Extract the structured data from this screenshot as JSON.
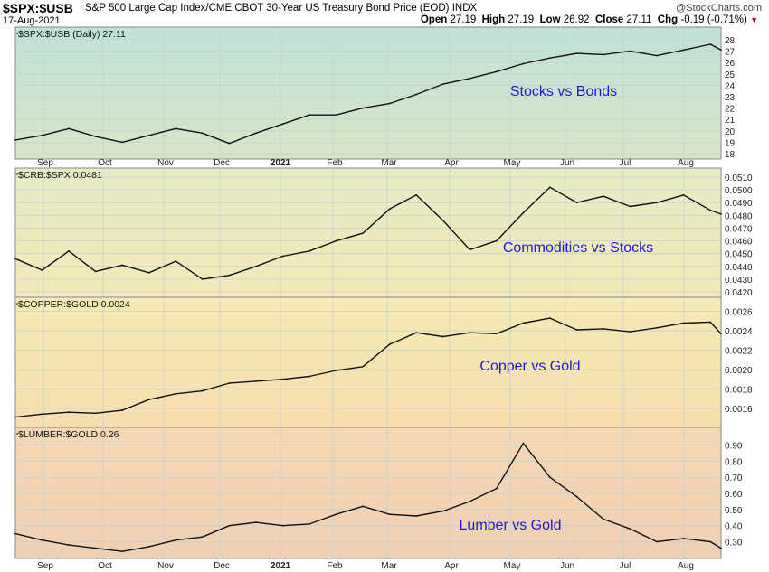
{
  "header": {
    "symbol": "$SPX:$USB",
    "description": "S&P 500 Large Cap Index/CME CBOT 30-Year US Treasury Bond Price (EOD)",
    "exchange": "INDX",
    "date": "17-Aug-2021",
    "open_label": "Open",
    "open": "27.19",
    "high_label": "High",
    "high": "27.19",
    "low_label": "Low",
    "low": "26.92",
    "close_label": "Close",
    "close": "27.11",
    "chg_label": "Chg",
    "chg": "-0.19 (-0.71%)",
    "brand": "@StockCharts.com",
    "down_color": "#cc0000"
  },
  "chart_data": [
    {
      "type": "line",
      "title": "$SPX:$USB (Daily) 27.11",
      "annotation": "Stocks vs Bonds",
      "y_ticks": [
        "18",
        "19",
        "20",
        "21",
        "22",
        "23",
        "24",
        "25",
        "26",
        "27",
        "28"
      ],
      "ylim": [
        18,
        28
      ],
      "x_ticks": [
        "Sep",
        "Oct",
        "Nov",
        "Dec",
        "2021",
        "Feb",
        "Mar",
        "Apr",
        "May",
        "Jun",
        "Jul",
        "Aug"
      ],
      "x": [
        0,
        10,
        20,
        30,
        40,
        50,
        60,
        70,
        80,
        90,
        100,
        110,
        120,
        130,
        140,
        150,
        160,
        170,
        180,
        190,
        200,
        210,
        220,
        230,
        240,
        250,
        260,
        264
      ],
      "values": [
        19.2,
        19.6,
        20.2,
        19.5,
        19.0,
        19.6,
        20.2,
        19.8,
        18.9,
        19.8,
        20.6,
        21.4,
        21.4,
        22.0,
        22.4,
        23.2,
        24.1,
        24.6,
        25.2,
        25.9,
        26.4,
        26.8,
        26.7,
        27.0,
        26.6,
        27.1,
        27.6,
        27.11
      ],
      "grid": true,
      "accent_color": "#1a1adc"
    },
    {
      "type": "line",
      "title": "$CRB:$SPX 0.0481",
      "annotation": "Commodities vs Stocks",
      "y_ticks": [
        "0.0420",
        "0.0430",
        "0.0440",
        "0.0450",
        "0.0460",
        "0.0470",
        "0.0480",
        "0.0490",
        "0.0500",
        "0.0510"
      ],
      "ylim": [
        0.042,
        0.051
      ],
      "x_ticks": [
        "Sep",
        "Oct",
        "Nov",
        "Dec",
        "2021",
        "Feb",
        "Mar",
        "Apr",
        "May",
        "Jun",
        "Jul",
        "Aug"
      ],
      "x": [
        0,
        10,
        20,
        30,
        40,
        50,
        60,
        70,
        80,
        90,
        100,
        110,
        120,
        130,
        140,
        150,
        160,
        170,
        180,
        190,
        200,
        210,
        220,
        230,
        240,
        250,
        260,
        264
      ],
      "values": [
        0.0446,
        0.0437,
        0.0452,
        0.0436,
        0.0441,
        0.0435,
        0.0444,
        0.043,
        0.0433,
        0.044,
        0.0448,
        0.0452,
        0.046,
        0.0466,
        0.0485,
        0.0496,
        0.0476,
        0.0453,
        0.046,
        0.0482,
        0.0502,
        0.049,
        0.0495,
        0.0487,
        0.049,
        0.0496,
        0.0484,
        0.0481
      ],
      "grid": true
    },
    {
      "type": "line",
      "title": "$COPPER:$GOLD 0.0024",
      "annotation": "Copper vs Gold",
      "y_ticks": [
        "0.0016",
        "0.0018",
        "0.0020",
        "0.0022",
        "0.0024",
        "0.0026"
      ],
      "ylim": [
        0.00145,
        0.00268
      ],
      "x_ticks": [
        "Sep",
        "Oct",
        "Nov",
        "Dec",
        "2021",
        "Feb",
        "Mar",
        "Apr",
        "May",
        "Jun",
        "Jul",
        "Aug"
      ],
      "x": [
        0,
        10,
        20,
        30,
        40,
        50,
        60,
        70,
        80,
        90,
        100,
        110,
        120,
        130,
        140,
        150,
        160,
        170,
        180,
        190,
        200,
        210,
        220,
        230,
        240,
        250,
        260,
        264
      ],
      "values": [
        0.00151,
        0.00154,
        0.00156,
        0.00155,
        0.00158,
        0.00169,
        0.00175,
        0.00178,
        0.00186,
        0.00188,
        0.0019,
        0.00193,
        0.00199,
        0.00203,
        0.00226,
        0.00238,
        0.00234,
        0.00238,
        0.00237,
        0.00248,
        0.00253,
        0.00241,
        0.00242,
        0.00239,
        0.00243,
        0.00248,
        0.00249,
        0.00237
      ],
      "grid": true
    },
    {
      "type": "line",
      "title": "$LUMBER:$GOLD 0.26",
      "annotation": "Lumber vs Gold",
      "y_ticks": [
        "0.30",
        "0.40",
        "0.50",
        "0.60",
        "0.70",
        "0.80",
        "0.90"
      ],
      "ylim": [
        0.23,
        0.97
      ],
      "x_ticks": [
        "Sep",
        "Oct",
        "Nov",
        "Dec",
        "2021",
        "Feb",
        "Mar",
        "Apr",
        "May",
        "Jun",
        "Jul",
        "Aug"
      ],
      "x": [
        0,
        10,
        20,
        30,
        40,
        50,
        60,
        70,
        80,
        90,
        100,
        110,
        120,
        130,
        140,
        150,
        160,
        170,
        180,
        190,
        200,
        210,
        220,
        230,
        240,
        250,
        260,
        264
      ],
      "values": [
        0.35,
        0.31,
        0.28,
        0.26,
        0.24,
        0.27,
        0.31,
        0.33,
        0.4,
        0.42,
        0.4,
        0.41,
        0.47,
        0.52,
        0.47,
        0.46,
        0.49,
        0.55,
        0.63,
        0.91,
        0.7,
        0.58,
        0.44,
        0.38,
        0.3,
        0.32,
        0.3,
        0.26
      ],
      "grid": true
    }
  ]
}
